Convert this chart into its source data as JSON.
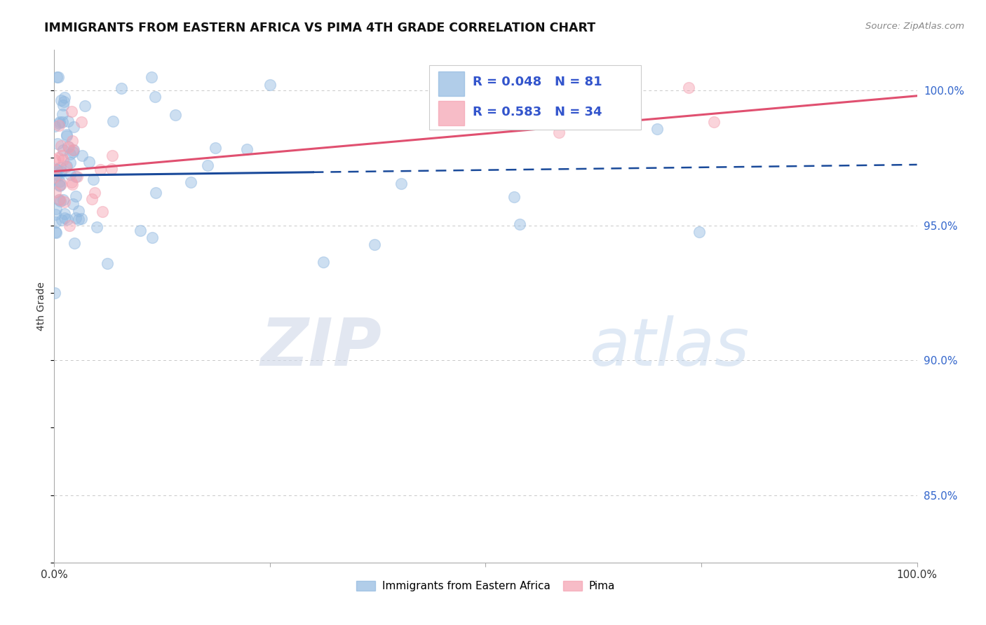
{
  "title": "IMMIGRANTS FROM EASTERN AFRICA VS PIMA 4TH GRADE CORRELATION CHART",
  "source": "Source: ZipAtlas.com",
  "ylabel": "4th Grade",
  "yaxis_labels": [
    "100.0%",
    "95.0%",
    "90.0%",
    "85.0%"
  ],
  "yaxis_values": [
    1.0,
    0.95,
    0.9,
    0.85
  ],
  "watermark_zip": "ZIP",
  "watermark_atlas": "atlas",
  "legend_blue_label": "Immigrants from Eastern Africa",
  "legend_pink_label": "Pima",
  "R_blue": 0.048,
  "N_blue": 81,
  "R_pink": 0.583,
  "N_pink": 34,
  "blue_color": "#90B8E0",
  "pink_color": "#F4A0B0",
  "blue_fill": "#90B8E0",
  "pink_fill": "#F4A0B0",
  "blue_line_color": "#1A4A9A",
  "pink_line_color": "#E05070",
  "axis_label_color": "#3366CC",
  "background_color": "#FFFFFF",
  "grid_color": "#C8C8C8",
  "title_color": "#111111",
  "source_color": "#888888",
  "ylabel_color": "#333333",
  "legend_text_color": "#000000",
  "legend_R_color": "#3355CC",
  "xlim": [
    0.0,
    1.0
  ],
  "ylim": [
    0.825,
    1.015
  ],
  "line_split": 0.3,
  "scatter_size": 130,
  "scatter_alpha": 0.45,
  "seed_blue": 77,
  "seed_pink": 99
}
